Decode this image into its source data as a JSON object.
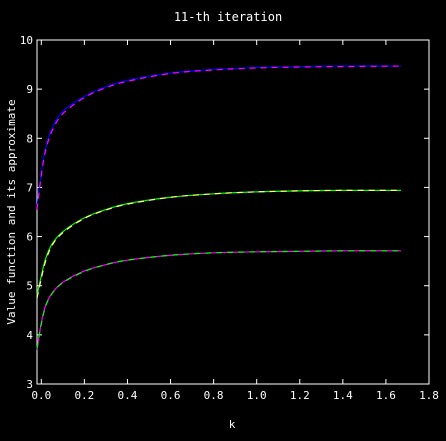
{
  "chart_data": {
    "type": "line",
    "title": "11-th iteration",
    "xlabel": "k",
    "ylabel": "Value function and its approximate",
    "xlim": [
      -0.02,
      1.8
    ],
    "ylim": [
      3,
      10
    ],
    "xticks": [
      "0.0",
      "0.2",
      "0.4",
      "0.6",
      "0.8",
      "1.0",
      "1.2",
      "1.4",
      "1.6",
      "1.8"
    ],
    "xtick_values": [
      0.0,
      0.2,
      0.4,
      0.6,
      0.8,
      1.0,
      1.2,
      1.4,
      1.6,
      1.8
    ],
    "yticks": [
      "3",
      "4",
      "5",
      "6",
      "7",
      "8",
      "9",
      "10"
    ],
    "ytick_values": [
      3,
      4,
      5,
      6,
      7,
      8,
      9,
      10
    ],
    "grid": false,
    "series": [
      {
        "color": "#0000ff",
        "x": [
          -0.02,
          0.0,
          0.02,
          0.05,
          0.1,
          0.2,
          0.3,
          0.4,
          0.6,
          0.8,
          1.0,
          1.2,
          1.4,
          1.67
        ],
        "y": [
          6.6,
          7.3,
          7.8,
          8.2,
          8.55,
          8.85,
          9.05,
          9.18,
          9.33,
          9.4,
          9.44,
          9.46,
          9.47,
          9.47
        ]
      },
      {
        "color": "#ff00ff",
        "x": [
          -0.02,
          0.0,
          0.02,
          0.05,
          0.1,
          0.2,
          0.3,
          0.4,
          0.6,
          0.8,
          1.0,
          1.2,
          1.4,
          1.67
        ],
        "y": [
          6.55,
          7.25,
          7.75,
          8.15,
          8.5,
          8.83,
          9.03,
          9.16,
          9.32,
          9.39,
          9.43,
          9.45,
          9.46,
          9.47
        ]
      },
      {
        "color": "#00ff00",
        "x": [
          -0.02,
          0.0,
          0.02,
          0.05,
          0.1,
          0.2,
          0.3,
          0.4,
          0.6,
          0.8,
          1.0,
          1.2,
          1.4,
          1.67
        ],
        "y": [
          4.8,
          5.2,
          5.55,
          5.85,
          6.1,
          6.38,
          6.55,
          6.67,
          6.8,
          6.87,
          6.91,
          6.93,
          6.94,
          6.94
        ]
      },
      {
        "color": "#ffff80",
        "x": [
          -0.02,
          0.0,
          0.02,
          0.05,
          0.1,
          0.2,
          0.3,
          0.4,
          0.6,
          0.8,
          1.0,
          1.2,
          1.4,
          1.67
        ],
        "y": [
          4.75,
          5.15,
          5.5,
          5.82,
          6.08,
          6.37,
          6.54,
          6.66,
          6.8,
          6.87,
          6.91,
          6.93,
          6.94,
          6.94
        ]
      },
      {
        "color": "#ff00ff",
        "x": [
          -0.02,
          0.0,
          0.02,
          0.05,
          0.1,
          0.2,
          0.3,
          0.4,
          0.6,
          0.8,
          1.0,
          1.2,
          1.4,
          1.67
        ],
        "y": [
          3.7,
          4.25,
          4.6,
          4.85,
          5.07,
          5.3,
          5.43,
          5.52,
          5.62,
          5.67,
          5.69,
          5.7,
          5.71,
          5.71
        ]
      },
      {
        "color": "#00ff00",
        "x": [
          -0.02,
          0.0,
          0.02,
          0.05,
          0.1,
          0.2,
          0.3,
          0.4,
          0.6,
          0.8,
          1.0,
          1.2,
          1.4,
          1.67
        ],
        "y": [
          3.72,
          4.22,
          4.58,
          4.84,
          5.06,
          5.29,
          5.43,
          5.52,
          5.62,
          5.67,
          5.69,
          5.7,
          5.71,
          5.71
        ]
      }
    ]
  }
}
